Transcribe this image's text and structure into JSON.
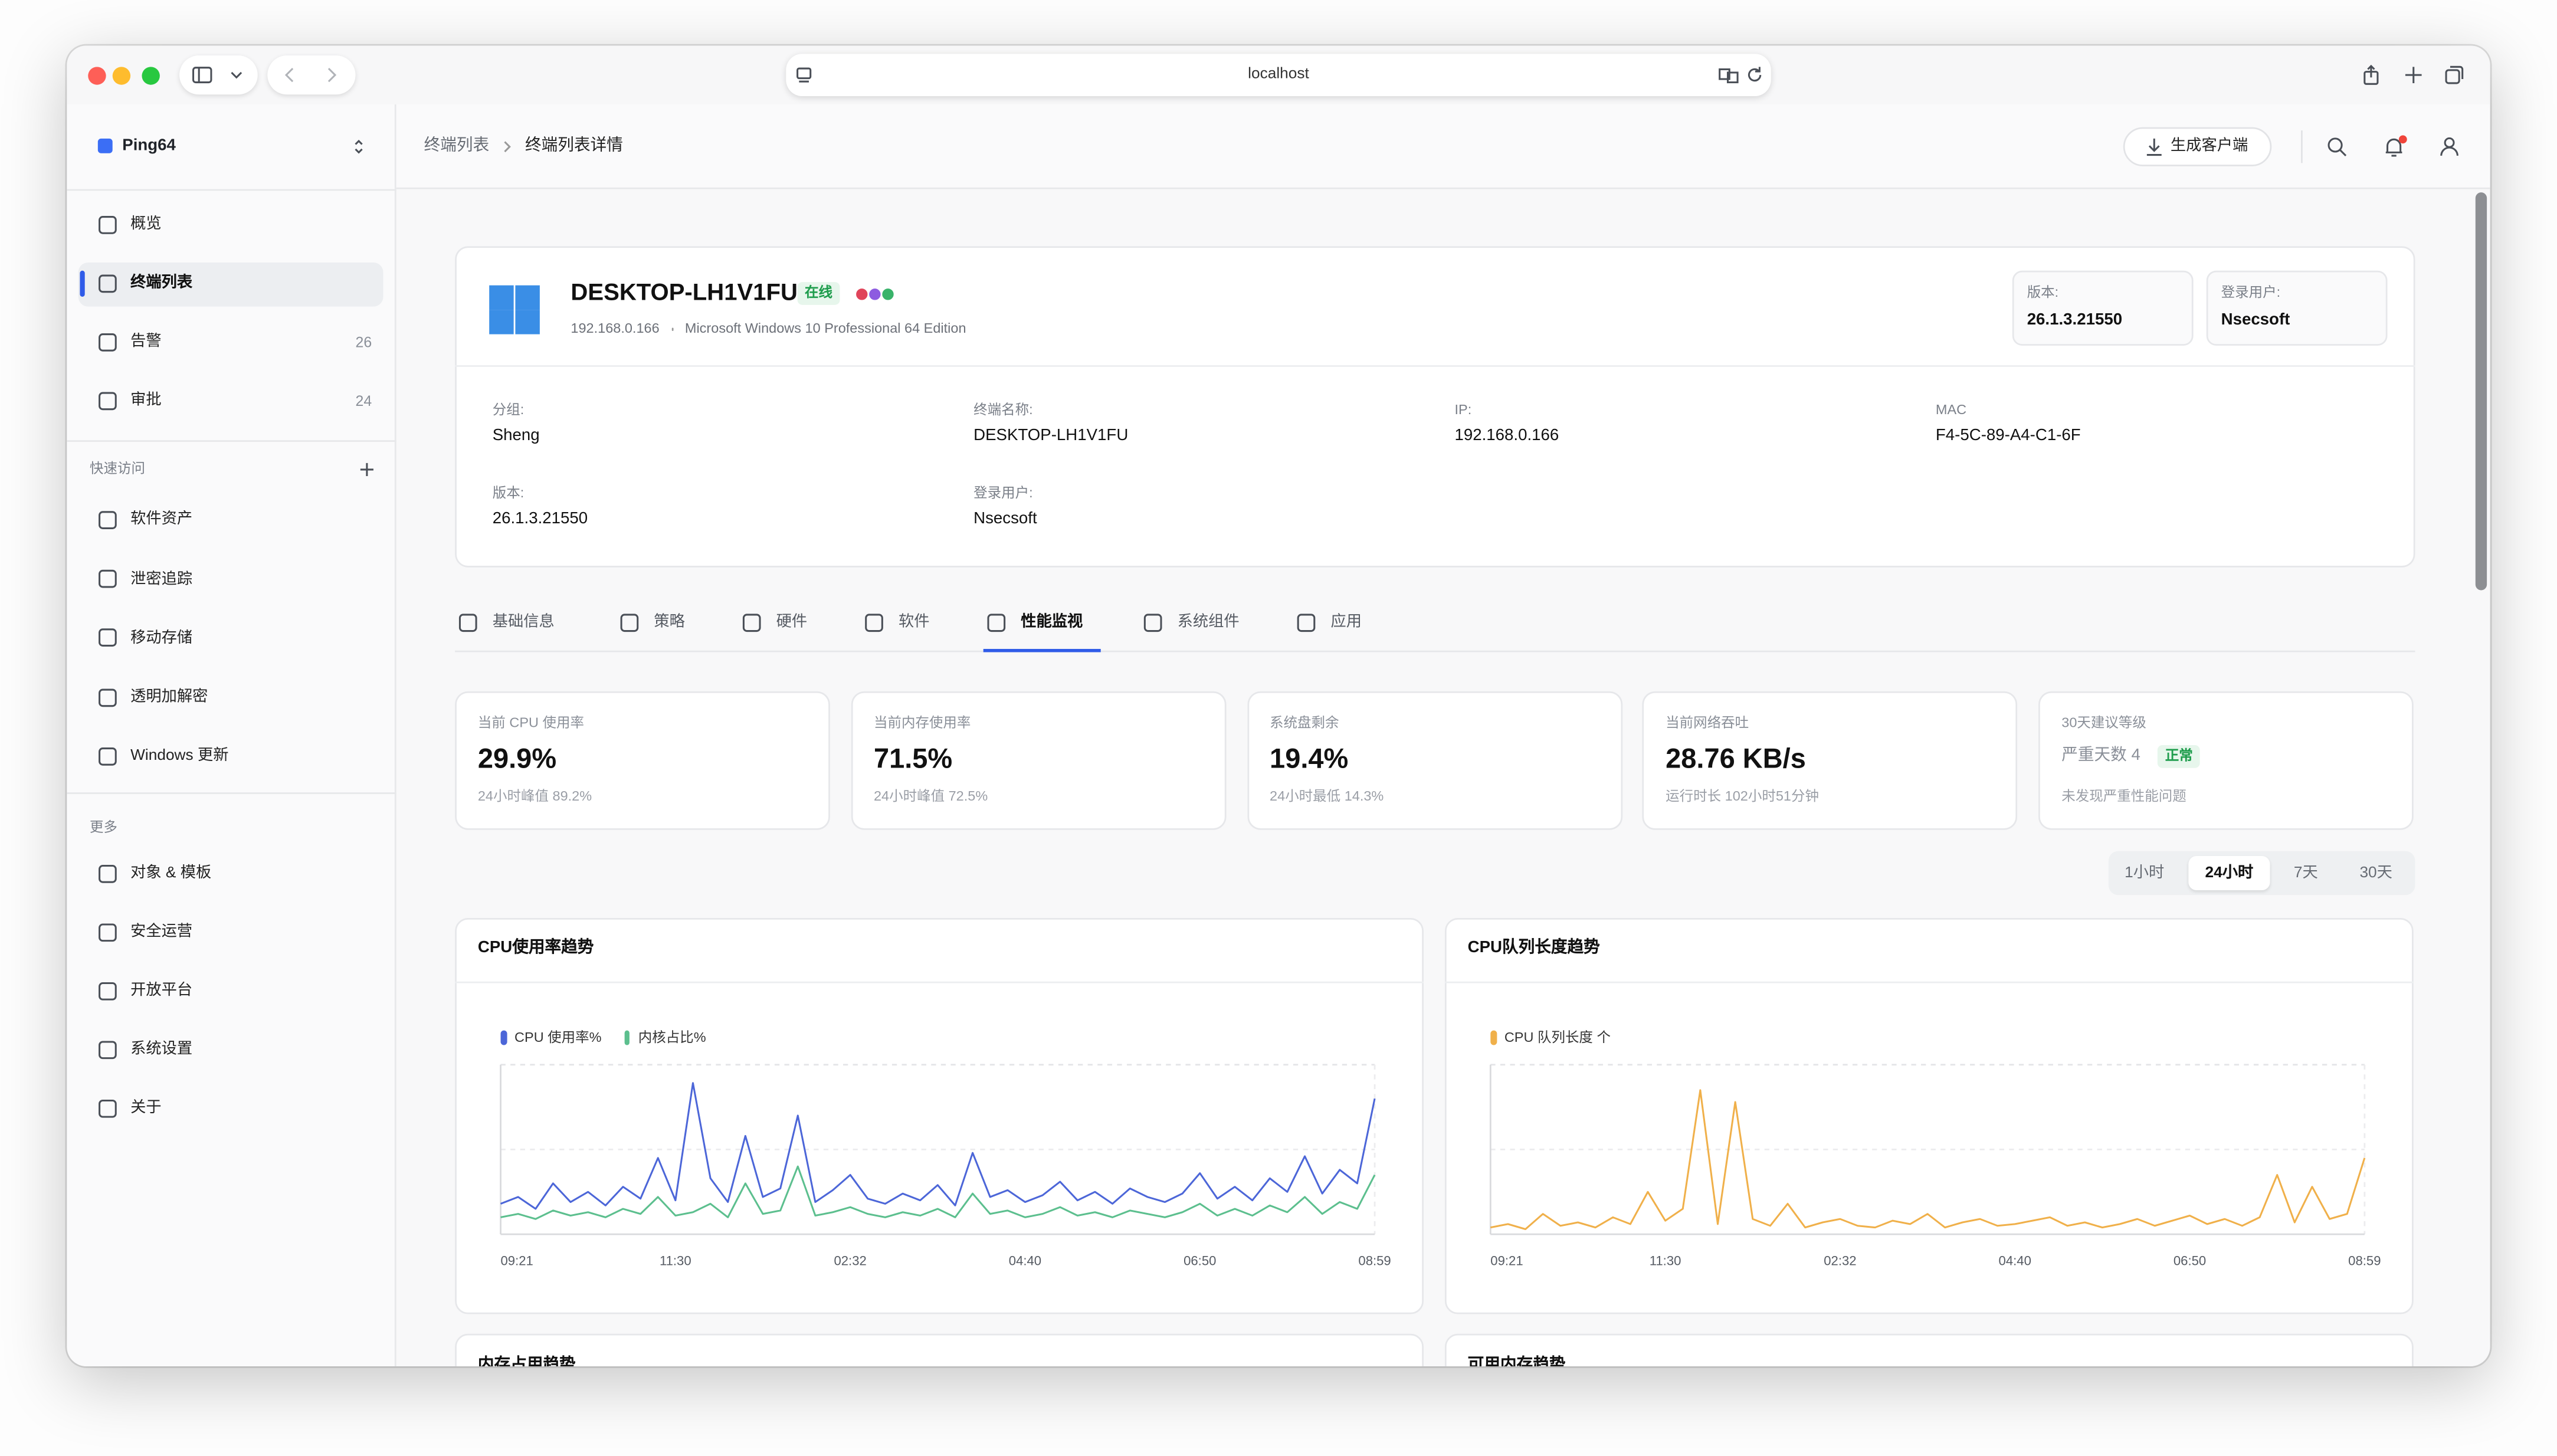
{
  "browser": {
    "url": "localhost"
  },
  "sidebar": {
    "app": "Ping64",
    "items": [
      {
        "label": "概览"
      },
      {
        "label": "终端列表"
      },
      {
        "label": "告警",
        "count": 26
      },
      {
        "label": "审批",
        "count": 24
      }
    ],
    "active": 1,
    "quick_title": "快速访问",
    "quick": [
      "软件资产",
      "泄密追踪",
      "移动存储",
      "透明加解密",
      "Windows 更新"
    ],
    "more_title": "更多",
    "more": [
      "对象 & 模板",
      "安全运营",
      "开放平台",
      "系统设置",
      "关于"
    ]
  },
  "header": {
    "breadcrumb": [
      "终端列表",
      "终端列表详情"
    ],
    "button": "生成客户端"
  },
  "device": {
    "name": "DESKTOP-LH1V1FU",
    "status": "在线",
    "ip": "192.168.0.166",
    "os": "Microsoft Windows 10 Professional 64 Edition",
    "badges": [
      {
        "label": "版本:",
        "value": "26.1.3.21550"
      },
      {
        "label": "登录用户:",
        "value": "Nsecsoft"
      }
    ],
    "fields": [
      {
        "label": "分组:",
        "value": "Sheng"
      },
      {
        "label": "终端名称:",
        "value": "DESKTOP-LH1V1FU"
      },
      {
        "label": "IP:",
        "value": "192.168.0.166"
      },
      {
        "label": "MAC",
        "value": "F4-5C-89-A4-C1-6F"
      },
      {
        "label": "版本:",
        "value": "26.1.3.21550"
      },
      {
        "label": "登录用户:",
        "value": "Nsecsoft"
      }
    ]
  },
  "tabs": [
    "基础信息",
    "策略",
    "硬件",
    "软件",
    "性能监视",
    "系统组件",
    "应用"
  ],
  "active_tab": 4,
  "stats": [
    {
      "label": "当前 CPU 使用率",
      "value": "29.9%",
      "sub": "24小时峰值 89.2%"
    },
    {
      "label": "当前内存使用率",
      "value": "71.5%",
      "sub": "24小时峰值 72.5%"
    },
    {
      "label": "系统盘剩余",
      "value": "19.4%",
      "sub": "24小时最低 14.3%"
    },
    {
      "label": "当前网络吞吐",
      "value": "28.76 KB/s",
      "sub": "运行时长 102小时51分钟"
    },
    {
      "label": "30天建议等级",
      "value": "严重天数 4",
      "badge": "正常",
      "sub": "未发现严重性能问题"
    }
  ],
  "ranges": [
    "1小时",
    "24小时",
    "7天",
    "30天"
  ],
  "active_range": 1,
  "chart_data": [
    {
      "type": "line",
      "title": "CPU使用率趋势",
      "categories": [
        "09:21",
        null,
        null,
        null,
        null,
        null,
        null,
        null,
        null,
        null,
        "11:30",
        null,
        null,
        null,
        null,
        null,
        null,
        null,
        null,
        null,
        "02:32",
        null,
        null,
        null,
        null,
        null,
        null,
        null,
        null,
        null,
        "04:40",
        null,
        null,
        null,
        null,
        null,
        null,
        null,
        null,
        null,
        "06:50",
        null,
        null,
        null,
        null,
        null,
        null,
        null,
        null,
        null,
        "08:59"
      ],
      "series": [
        {
          "name": "CPU 使用率%",
          "color": "#4c66d8",
          "values": [
            18,
            22,
            15,
            30,
            19,
            25,
            17,
            28,
            21,
            45,
            20,
            89.2,
            33,
            19,
            58,
            22,
            27,
            70,
            19,
            26,
            35,
            21,
            18,
            24,
            20,
            29,
            17,
            48,
            22,
            26,
            19,
            23,
            31,
            20,
            25,
            18,
            27,
            22,
            19,
            24,
            36,
            21,
            28,
            20,
            33,
            25,
            46,
            24,
            38,
            30,
            80
          ]
        },
        {
          "name": "内核占比%",
          "color": "#5cbf8e",
          "values": [
            10,
            12,
            9,
            14,
            11,
            13,
            10,
            15,
            12,
            22,
            11,
            13,
            18,
            10,
            30,
            12,
            14,
            40,
            11,
            13,
            16,
            12,
            10,
            13,
            11,
            15,
            10,
            24,
            12,
            14,
            10,
            12,
            16,
            11,
            13,
            10,
            14,
            12,
            10,
            13,
            18,
            11,
            15,
            11,
            17,
            13,
            22,
            12,
            19,
            15,
            35
          ]
        }
      ],
      "ylim": [
        0,
        100
      ]
    },
    {
      "type": "line",
      "title": "CPU队列长度趋势",
      "categories": [
        "09:21",
        null,
        null,
        null,
        null,
        null,
        null,
        null,
        null,
        null,
        "11:30",
        null,
        null,
        null,
        null,
        null,
        null,
        null,
        null,
        null,
        "02:32",
        null,
        null,
        null,
        null,
        null,
        null,
        null,
        null,
        null,
        "04:40",
        null,
        null,
        null,
        null,
        null,
        null,
        null,
        null,
        null,
        "06:50",
        null,
        null,
        null,
        null,
        null,
        null,
        null,
        null,
        null,
        "08:59"
      ],
      "series": [
        {
          "name": "CPU 队列长度 个",
          "color": "#f0b04a",
          "values": [
            0.4,
            0.6,
            0.3,
            1.2,
            0.5,
            0.7,
            0.4,
            1.0,
            0.6,
            2.5,
            0.8,
            1.5,
            8.5,
            0.6,
            7.8,
            0.9,
            0.5,
            1.8,
            0.4,
            0.7,
            0.9,
            0.5,
            0.4,
            0.8,
            0.6,
            1.2,
            0.4,
            0.7,
            0.9,
            0.5,
            0.6,
            0.8,
            1.0,
            0.5,
            0.7,
            0.4,
            0.6,
            0.9,
            0.5,
            0.8,
            1.1,
            0.6,
            0.9,
            0.5,
            1.0,
            3.5,
            0.7,
            2.8,
            0.9,
            1.2,
            4.5
          ]
        }
      ],
      "ylim": [
        0,
        10
      ]
    }
  ],
  "more_charts": [
    "内存占用趋势",
    "可用内存趋势"
  ]
}
